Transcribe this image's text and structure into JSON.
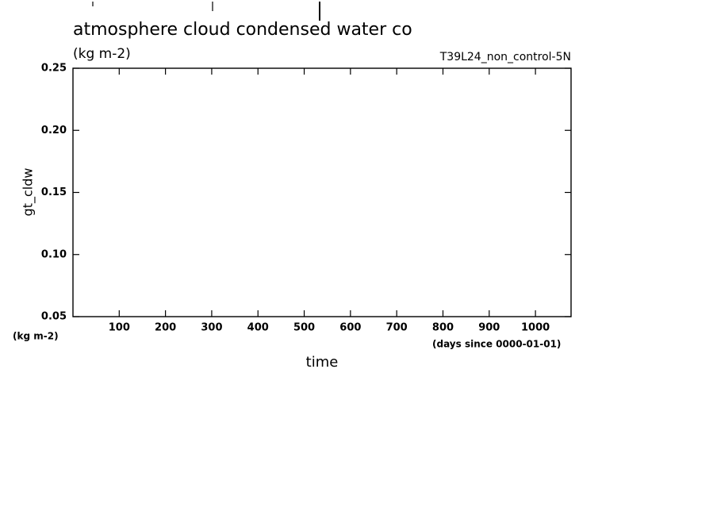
{
  "chart_data": {
    "type": "line",
    "title": "atmosphere cloud condensed water co",
    "subtitle": "(kg m-2)",
    "run_label": "T39L24_non_control-5N",
    "y_label": "gt_cldw",
    "y_unit": "(kg m-2)",
    "x_label": "time",
    "x_unit": "(days since 0000-01-01)",
    "series": [],
    "xlim": [
      0,
      1077
    ],
    "xticks": [
      100,
      200,
      300,
      400,
      500,
      600,
      700,
      800,
      900,
      1000
    ],
    "ylim": [
      0.05,
      0.25
    ],
    "yticks": [
      0.05,
      {
        "value": 0.1,
        "label": "0.10"
      },
      0.15,
      {
        "value": 0.2,
        "label": "0.20"
      },
      0.25
    ]
  }
}
